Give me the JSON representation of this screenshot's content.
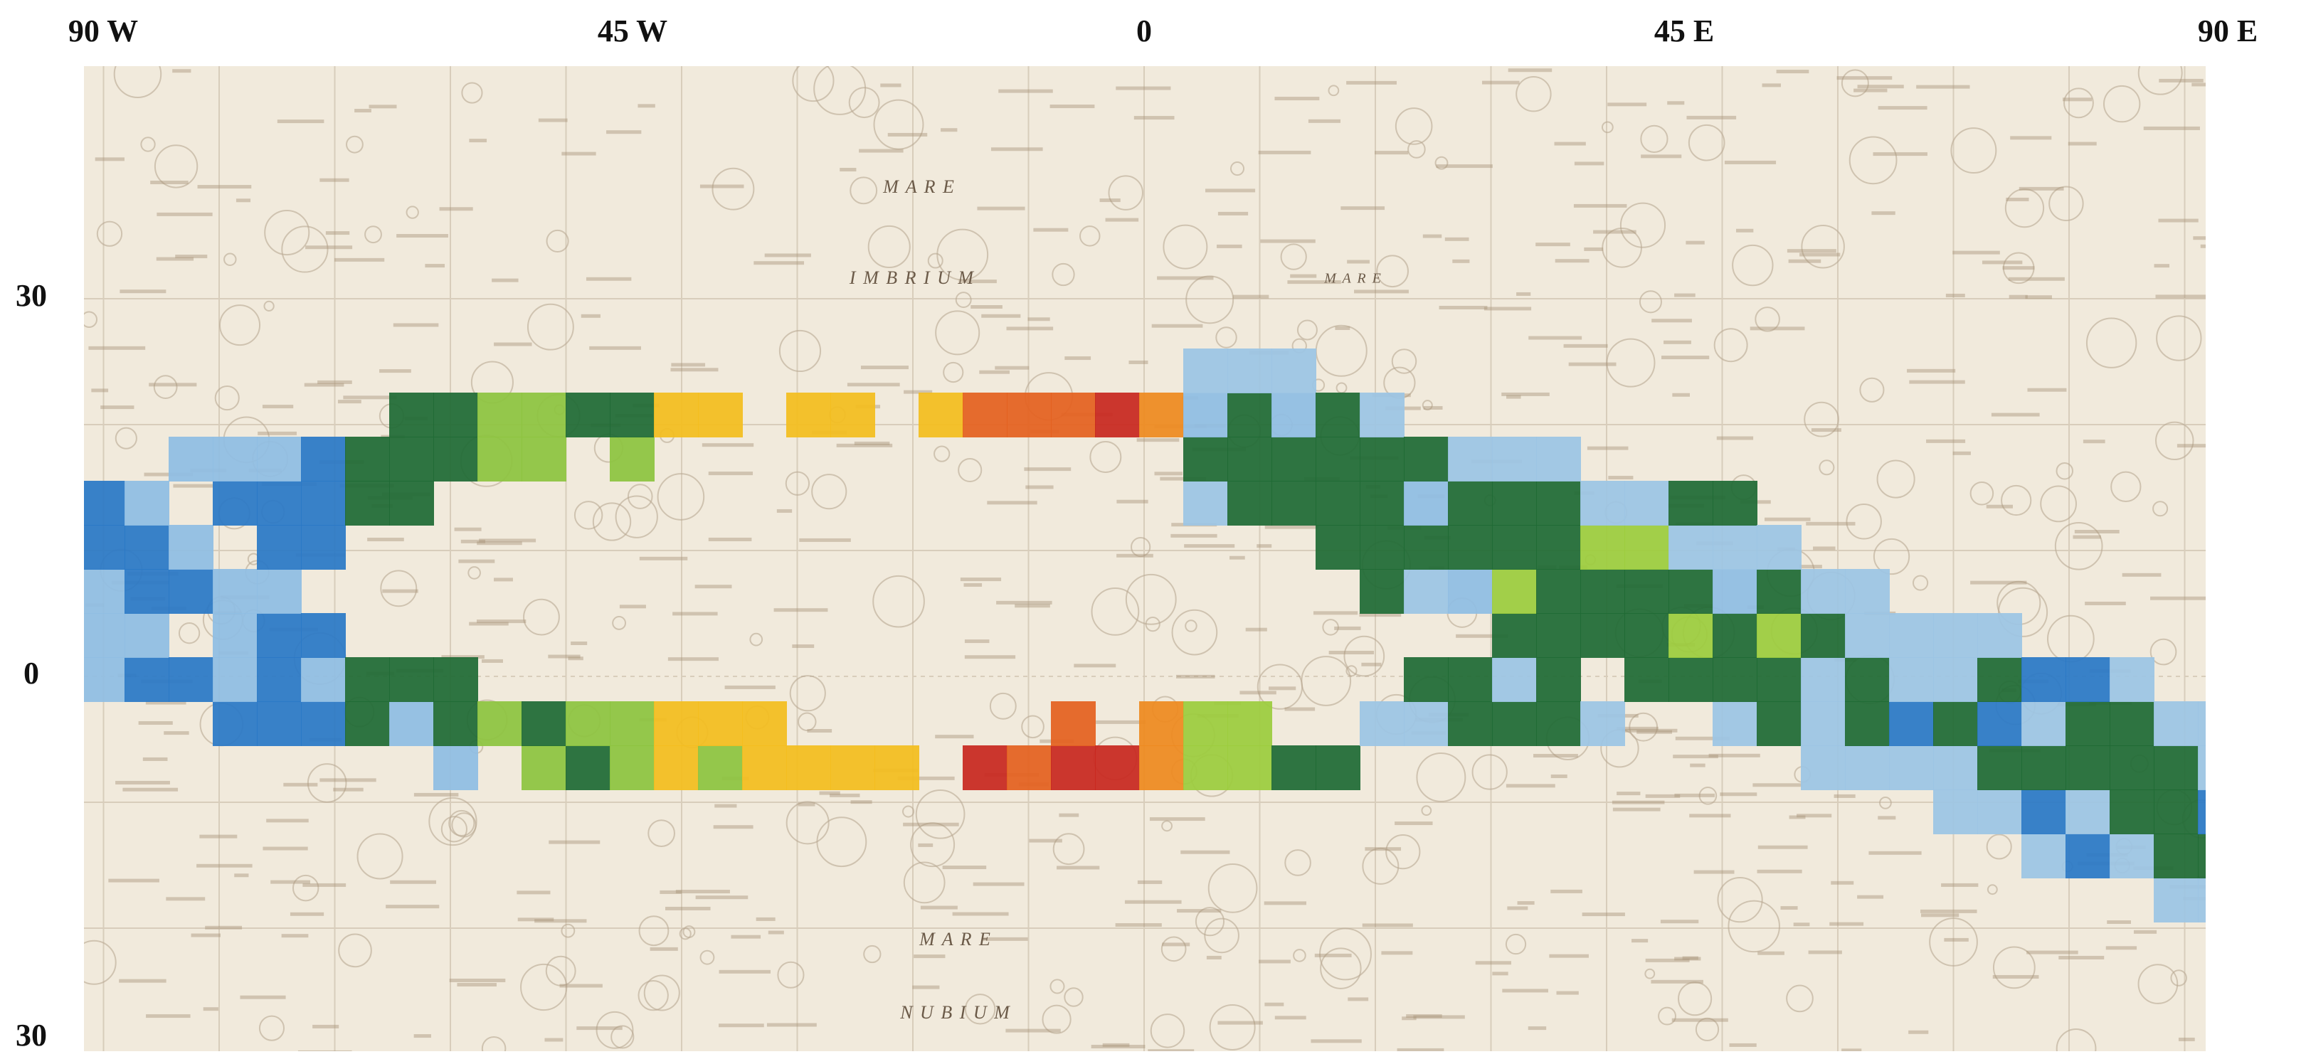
{
  "axes": {
    "top_labels": [
      "90 W",
      "45 W",
      "0",
      "45 E",
      "90 E"
    ],
    "left_labels": [
      "30",
      "0",
      "30"
    ]
  },
  "map_labels": [
    "M A R E",
    "I M B R I U M",
    "M A R E",
    "M A R E",
    "N U B I U M"
  ]
}
